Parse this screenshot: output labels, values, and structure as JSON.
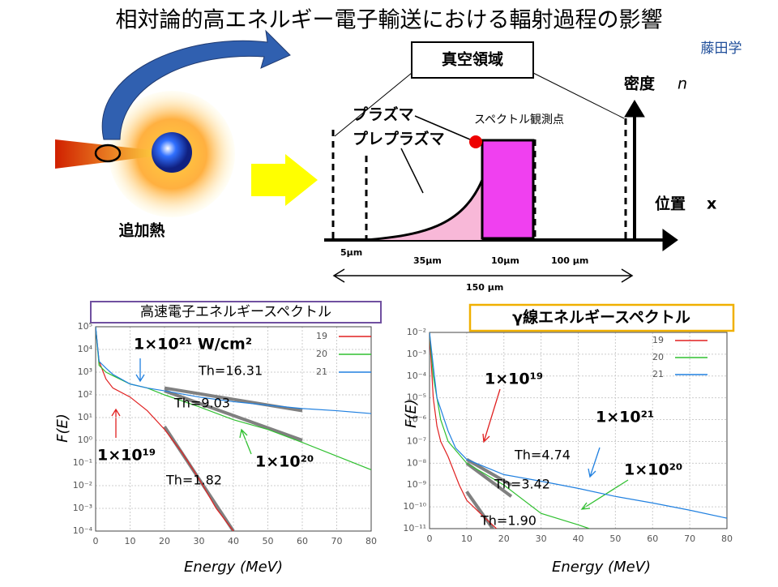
{
  "title": "相対論的高エネルギー電子輸送における輻射過程の影響",
  "author": "藤田学",
  "diagram": {
    "vacuum": "真空領域",
    "density": "密度",
    "density_symbol": "n",
    "position": "位置",
    "position_symbol": "x",
    "plasma": "プラズマ",
    "preplasma": "プレプラズマ",
    "observation": "スペクトル観測点",
    "d1": "5μm",
    "d2": "35μm",
    "d3": "10μm",
    "d4": "100 μm",
    "total": "150 μm",
    "heating": "追加熱"
  },
  "chart_data": [
    {
      "type": "line",
      "title": "高速電子エネルギースペクトル",
      "xlabel": "Energy (MeV)",
      "ylabel": "F(E)",
      "log_y": true,
      "grid": true,
      "legend": "upper right",
      "xlim": [
        0,
        80
      ],
      "xticks": [
        0,
        10,
        20,
        30,
        40,
        50,
        60,
        70,
        80
      ],
      "ylim": [
        0.0001,
        100000
      ],
      "yticks": [
        {
          "value": 100000,
          "label": "10⁵"
        },
        {
          "value": 10000,
          "label": "10⁴"
        },
        {
          "value": 1000,
          "label": "10³"
        },
        {
          "value": 100,
          "label": "10²"
        },
        {
          "value": 10,
          "label": "10¹"
        },
        {
          "value": 1,
          "label": "10⁰"
        },
        {
          "value": 0.1,
          "label": "10⁻¹"
        },
        {
          "value": 0.01,
          "label": "10⁻²"
        },
        {
          "value": 0.001,
          "label": "10⁻³"
        },
        {
          "value": 0.0001,
          "label": "10⁻⁴"
        }
      ],
      "series": [
        {
          "name": "19",
          "color": "#e02020",
          "x": [
            0,
            1,
            3,
            5,
            10,
            15,
            20,
            25,
            30,
            35,
            40
          ],
          "values": [
            100000,
            3000,
            500,
            200,
            80,
            20,
            3,
            0.3,
            0.02,
            0.001,
            0.0001
          ]
        },
        {
          "name": "20",
          "color": "#30c030",
          "x": [
            0,
            1,
            3,
            5,
            10,
            15,
            20,
            30,
            40,
            50,
            60,
            70,
            80
          ],
          "values": [
            100000,
            2000,
            1000,
            700,
            300,
            200,
            100,
            30,
            8,
            3,
            0.8,
            0.2,
            0.05
          ]
        },
        {
          "name": "21",
          "color": "#2080e0",
          "x": [
            0,
            1,
            3,
            5,
            10,
            15,
            20,
            30,
            40,
            50,
            60,
            70,
            80
          ],
          "values": [
            100000,
            3000,
            1500,
            800,
            300,
            200,
            150,
            80,
            50,
            35,
            25,
            20,
            15
          ]
        }
      ],
      "fits": [
        {
          "x": [
            20,
            60
          ],
          "values": [
            200,
            20
          ]
        },
        {
          "x": [
            20,
            60
          ],
          "values": [
            150,
            1
          ]
        },
        {
          "x": [
            20,
            40
          ],
          "values": [
            4,
            0.0001
          ]
        }
      ],
      "annotations": [
        "1×10²¹ W/cm²",
        "Th=16.31",
        "Th=9.03",
        "1×10¹⁹",
        "1×10²⁰",
        "Th=1.82"
      ]
    },
    {
      "type": "line",
      "title": "γ線エネルギースペクトル",
      "xlabel": "Energy (MeV)",
      "ylabel": "F(E)",
      "log_y": true,
      "grid": true,
      "legend": "upper right",
      "xlim": [
        0,
        80
      ],
      "xticks": [
        0,
        10,
        20,
        30,
        40,
        50,
        60,
        70,
        80
      ],
      "ylim": [
        1e-11,
        0.01
      ],
      "yticks": [
        {
          "value": 0.01,
          "label": "10⁻²"
        },
        {
          "value": 0.001,
          "label": "10⁻³"
        },
        {
          "value": 0.0001,
          "label": "10⁻⁴"
        },
        {
          "value": 1e-05,
          "label": "10⁻⁵"
        },
        {
          "value": 1e-06,
          "label": "10⁻⁶"
        },
        {
          "value": 1e-07,
          "label": "10⁻⁷"
        },
        {
          "value": 1e-08,
          "label": "10⁻⁸"
        },
        {
          "value": 1e-09,
          "label": "10⁻⁹"
        },
        {
          "value": 1e-10,
          "label": "10⁻¹⁰"
        },
        {
          "value": 1e-11,
          "label": "10⁻¹¹"
        }
      ],
      "series": [
        {
          "name": "19",
          "color": "#e02020",
          "x": [
            0,
            1,
            2,
            3,
            5,
            8,
            10,
            15,
            18
          ],
          "values": [
            0.01,
            1e-05,
            5e-07,
            1e-07,
            2e-08,
            1e-09,
            2e-10,
            3e-11,
            1e-11
          ]
        },
        {
          "name": "20",
          "color": "#30c030",
          "x": [
            0,
            1,
            2,
            3,
            5,
            10,
            20,
            30,
            40,
            43
          ],
          "values": [
            0.01,
            0.0001,
            1e-05,
            1e-06,
            1e-07,
            1e-08,
            1e-09,
            5e-11,
            1.5e-11,
            1e-11
          ]
        },
        {
          "name": "21",
          "color": "#2080e0",
          "x": [
            0,
            1,
            2,
            5,
            7,
            10,
            20,
            30,
            40,
            50,
            60,
            70,
            80
          ],
          "values": [
            0.01,
            0.0003,
            1e-05,
            3e-07,
            5e-08,
            1.5e-08,
            3e-09,
            1.5e-09,
            7e-10,
            3e-10,
            1.5e-10,
            7e-11,
            3e-11
          ]
        }
      ],
      "fits": [
        {
          "x": [
            10,
            22
          ],
          "values": [
            1.5e-08,
            1e-09
          ]
        },
        {
          "x": [
            10,
            22
          ],
          "values": [
            1e-08,
            3e-10
          ]
        },
        {
          "x": [
            10,
            17
          ],
          "values": [
            5e-10,
            1e-11
          ]
        }
      ],
      "annotations": [
        "1×10¹⁹",
        "1×10²¹",
        "1×10²⁰",
        "Th=4.74",
        "Th=3.42",
        "Th=1.90"
      ]
    }
  ]
}
